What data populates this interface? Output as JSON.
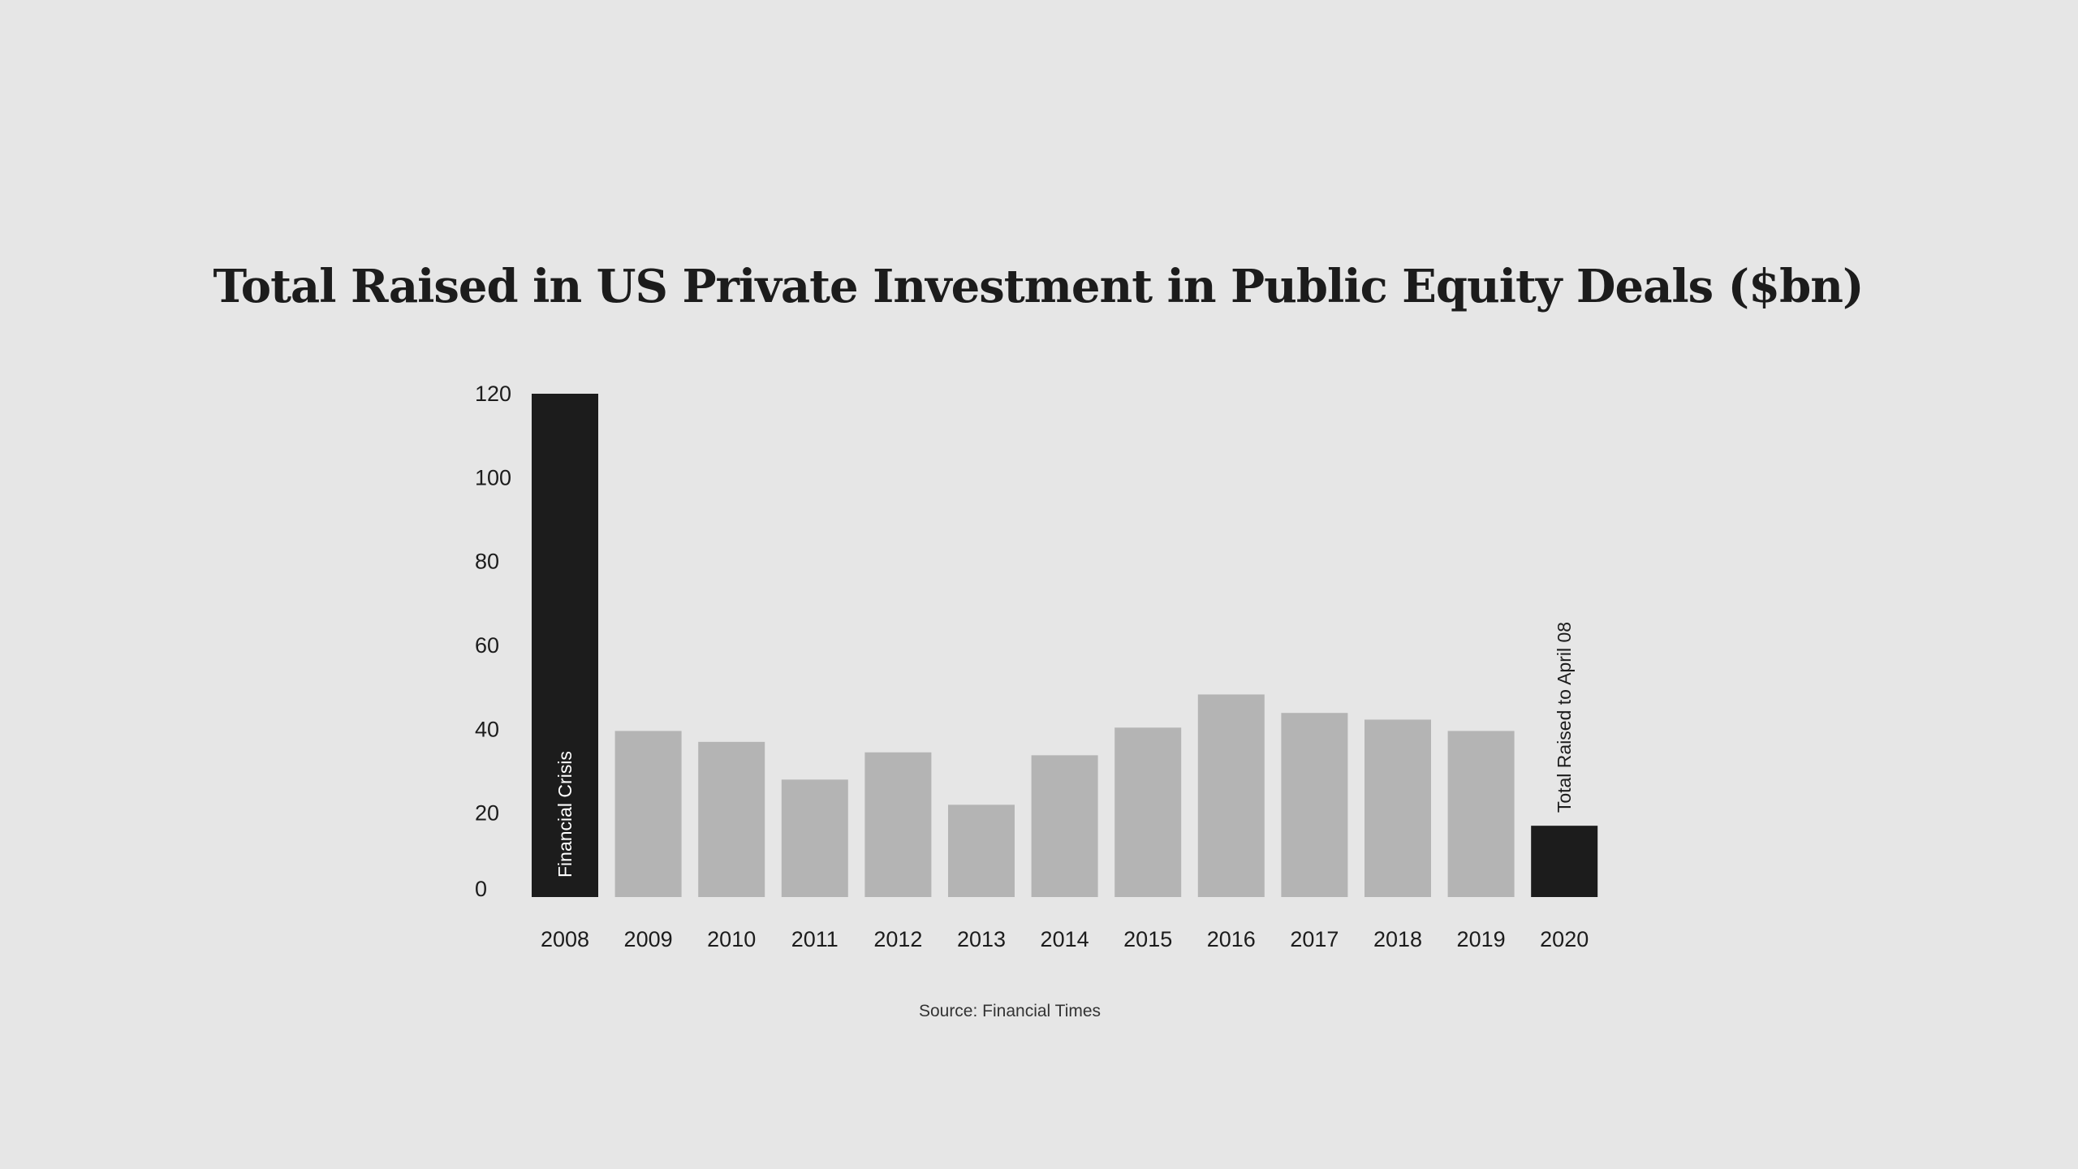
{
  "chart_data": {
    "type": "bar",
    "title": "Total Raised in US Private Investment in Public Equity Deals ($bn)",
    "xlabel": "",
    "ylabel": "",
    "ylim": [
      0,
      120
    ],
    "yticks": [
      0,
      20,
      40,
      60,
      80,
      100,
      120
    ],
    "grid": false,
    "categories": [
      "2008",
      "2009",
      "2010",
      "2011",
      "2012",
      "2013",
      "2014",
      "2015",
      "2016",
      "2017",
      "2018",
      "2019",
      "2020"
    ],
    "values": [
      120,
      39.6,
      37,
      28,
      34.5,
      22,
      33.8,
      40.4,
      48.3,
      43.9,
      42.3,
      39.6,
      17
    ],
    "highlighted": [
      "2008",
      "2020"
    ],
    "annotations": [
      {
        "category": "2008",
        "text": "Financial Crisis"
      },
      {
        "category": "2020",
        "text": "Total Raised to April 08"
      }
    ],
    "source": "Source: Financial Times",
    "colors": {
      "highlight": "#1c1c1c",
      "normal": "#b4b4b4",
      "background": "#e6e6e6"
    }
  }
}
